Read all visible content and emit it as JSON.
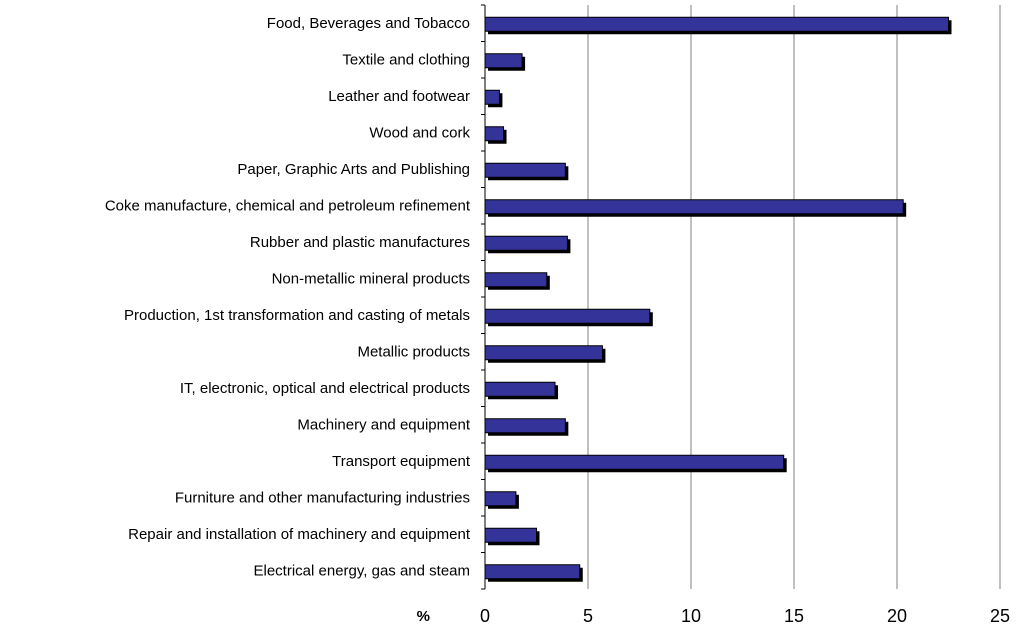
{
  "chart_data": {
    "type": "bar",
    "orientation": "horizontal",
    "xlabel": "%",
    "categories": [
      "Food, Beverages and Tobacco",
      "Textile and clothing",
      "Leather and footwear",
      "Wood and cork",
      "Paper, Graphic Arts and Publishing",
      "Coke manufacture, chemical and petroleum refinement",
      "Rubber and plastic manufactures",
      "Non-metallic mineral products",
      "Production, 1st transformation and casting of metals",
      "Metallic products",
      "IT, electronic, optical and electrical products",
      "Machinery and equipment",
      "Transport equipment",
      "Furniture and other manufacturing industries",
      "Repair and installation of machinery and equipment",
      "Electrical energy, gas and steam"
    ],
    "values": [
      22.5,
      1.8,
      0.7,
      0.9,
      3.9,
      20.3,
      4.0,
      3.0,
      8.0,
      5.7,
      3.4,
      3.9,
      14.5,
      1.5,
      2.5,
      4.6
    ],
    "color": "#333399",
    "xlim": [
      0,
      25
    ],
    "xticks": [
      0,
      5,
      10,
      15,
      20,
      25
    ],
    "grid": true
  }
}
